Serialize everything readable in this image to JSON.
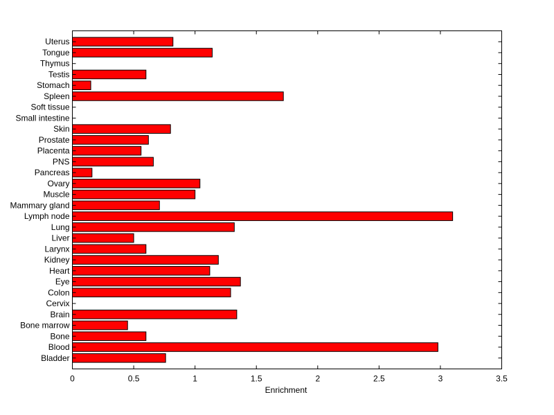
{
  "chart_data": {
    "type": "bar",
    "orientation": "horizontal",
    "title": "",
    "xlabel": "Enrichment",
    "ylabel": "",
    "xlim": [
      0,
      3.5
    ],
    "xticks": [
      0,
      0.5,
      1,
      1.5,
      2,
      2.5,
      3,
      3.5
    ],
    "xtick_labels": [
      "0",
      "0.5",
      "1",
      "1.5",
      "2",
      "2.5",
      "3",
      "3.5"
    ],
    "grid": false,
    "legend": "none",
    "bar_color": "#ff0000",
    "bar_edge_color": "#000000",
    "categories": [
      "Bladder",
      "Blood",
      "Bone",
      "Bone marrow",
      "Brain",
      "Cervix",
      "Colon",
      "Eye",
      "Heart",
      "Kidney",
      "Larynx",
      "Liver",
      "Lung",
      "Lymph node",
      "Mammary gland",
      "Muscle",
      "Ovary",
      "Pancreas",
      "PNS",
      "Placenta",
      "Prostate",
      "Skin",
      "Small intestine",
      "Soft tissue",
      "Spleen",
      "Stomach",
      "Testis",
      "Thymus",
      "Tongue",
      "Uterus"
    ],
    "values": [
      0.76,
      2.98,
      0.6,
      0.45,
      1.34,
      0,
      1.29,
      1.37,
      1.12,
      1.19,
      0.6,
      0.5,
      1.32,
      3.1,
      0.71,
      1.0,
      1.04,
      0.16,
      0.66,
      0.56,
      0.62,
      0.8,
      0,
      0,
      1.72,
      0.15,
      0.6,
      0,
      1.14,
      0.82
    ]
  }
}
